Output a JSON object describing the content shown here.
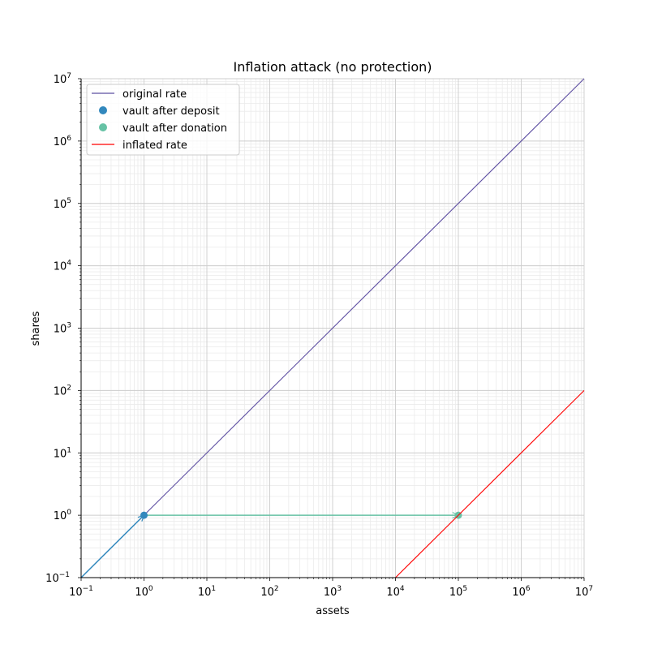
{
  "chart_data": {
    "type": "line",
    "title": "Inflation attack (no protection)",
    "xlabel": "assets",
    "ylabel": "shares",
    "xscale": "log",
    "yscale": "log",
    "xlim": [
      0.1,
      10000000
    ],
    "ylim": [
      0.1,
      10000000
    ],
    "grid": "major and minor",
    "legend_position": "top-left",
    "x_tick_labels": [
      {
        "base": "10",
        "exp": "−1"
      },
      {
        "base": "10",
        "exp": "0"
      },
      {
        "base": "10",
        "exp": "1"
      },
      {
        "base": "10",
        "exp": "2"
      },
      {
        "base": "10",
        "exp": "3"
      },
      {
        "base": "10",
        "exp": "4"
      },
      {
        "base": "10",
        "exp": "5"
      },
      {
        "base": "10",
        "exp": "6"
      },
      {
        "base": "10",
        "exp": "7"
      }
    ],
    "y_tick_labels": [
      {
        "base": "10",
        "exp": "−1"
      },
      {
        "base": "10",
        "exp": "0"
      },
      {
        "base": "10",
        "exp": "1"
      },
      {
        "base": "10",
        "exp": "2"
      },
      {
        "base": "10",
        "exp": "3"
      },
      {
        "base": "10",
        "exp": "4"
      },
      {
        "base": "10",
        "exp": "5"
      },
      {
        "base": "10",
        "exp": "6"
      },
      {
        "base": "10",
        "exp": "7"
      }
    ],
    "series": [
      {
        "name": "original rate",
        "kind": "line",
        "color": "#5e4fa2",
        "x": [
          1,
          10000000
        ],
        "y": [
          1,
          10000000
        ]
      },
      {
        "name": "vault after deposit",
        "kind": "scatter",
        "color": "#3288bd",
        "x": [
          1
        ],
        "y": [
          1
        ]
      },
      {
        "name": "vault after donation",
        "kind": "scatter",
        "color": "#66c2a5",
        "x": [
          100000
        ],
        "y": [
          1
        ]
      },
      {
        "name": "inflated rate",
        "kind": "line",
        "color": "#ff0000",
        "x": [
          10000,
          10000000
        ],
        "y": [
          0.1,
          100
        ]
      }
    ],
    "arrows": [
      {
        "from": [
          0.1,
          0.1
        ],
        "to": [
          1,
          1
        ],
        "color": "#3288bd"
      },
      {
        "from": [
          1,
          1
        ],
        "to": [
          100000,
          1
        ],
        "color": "#66c2a5"
      }
    ]
  }
}
